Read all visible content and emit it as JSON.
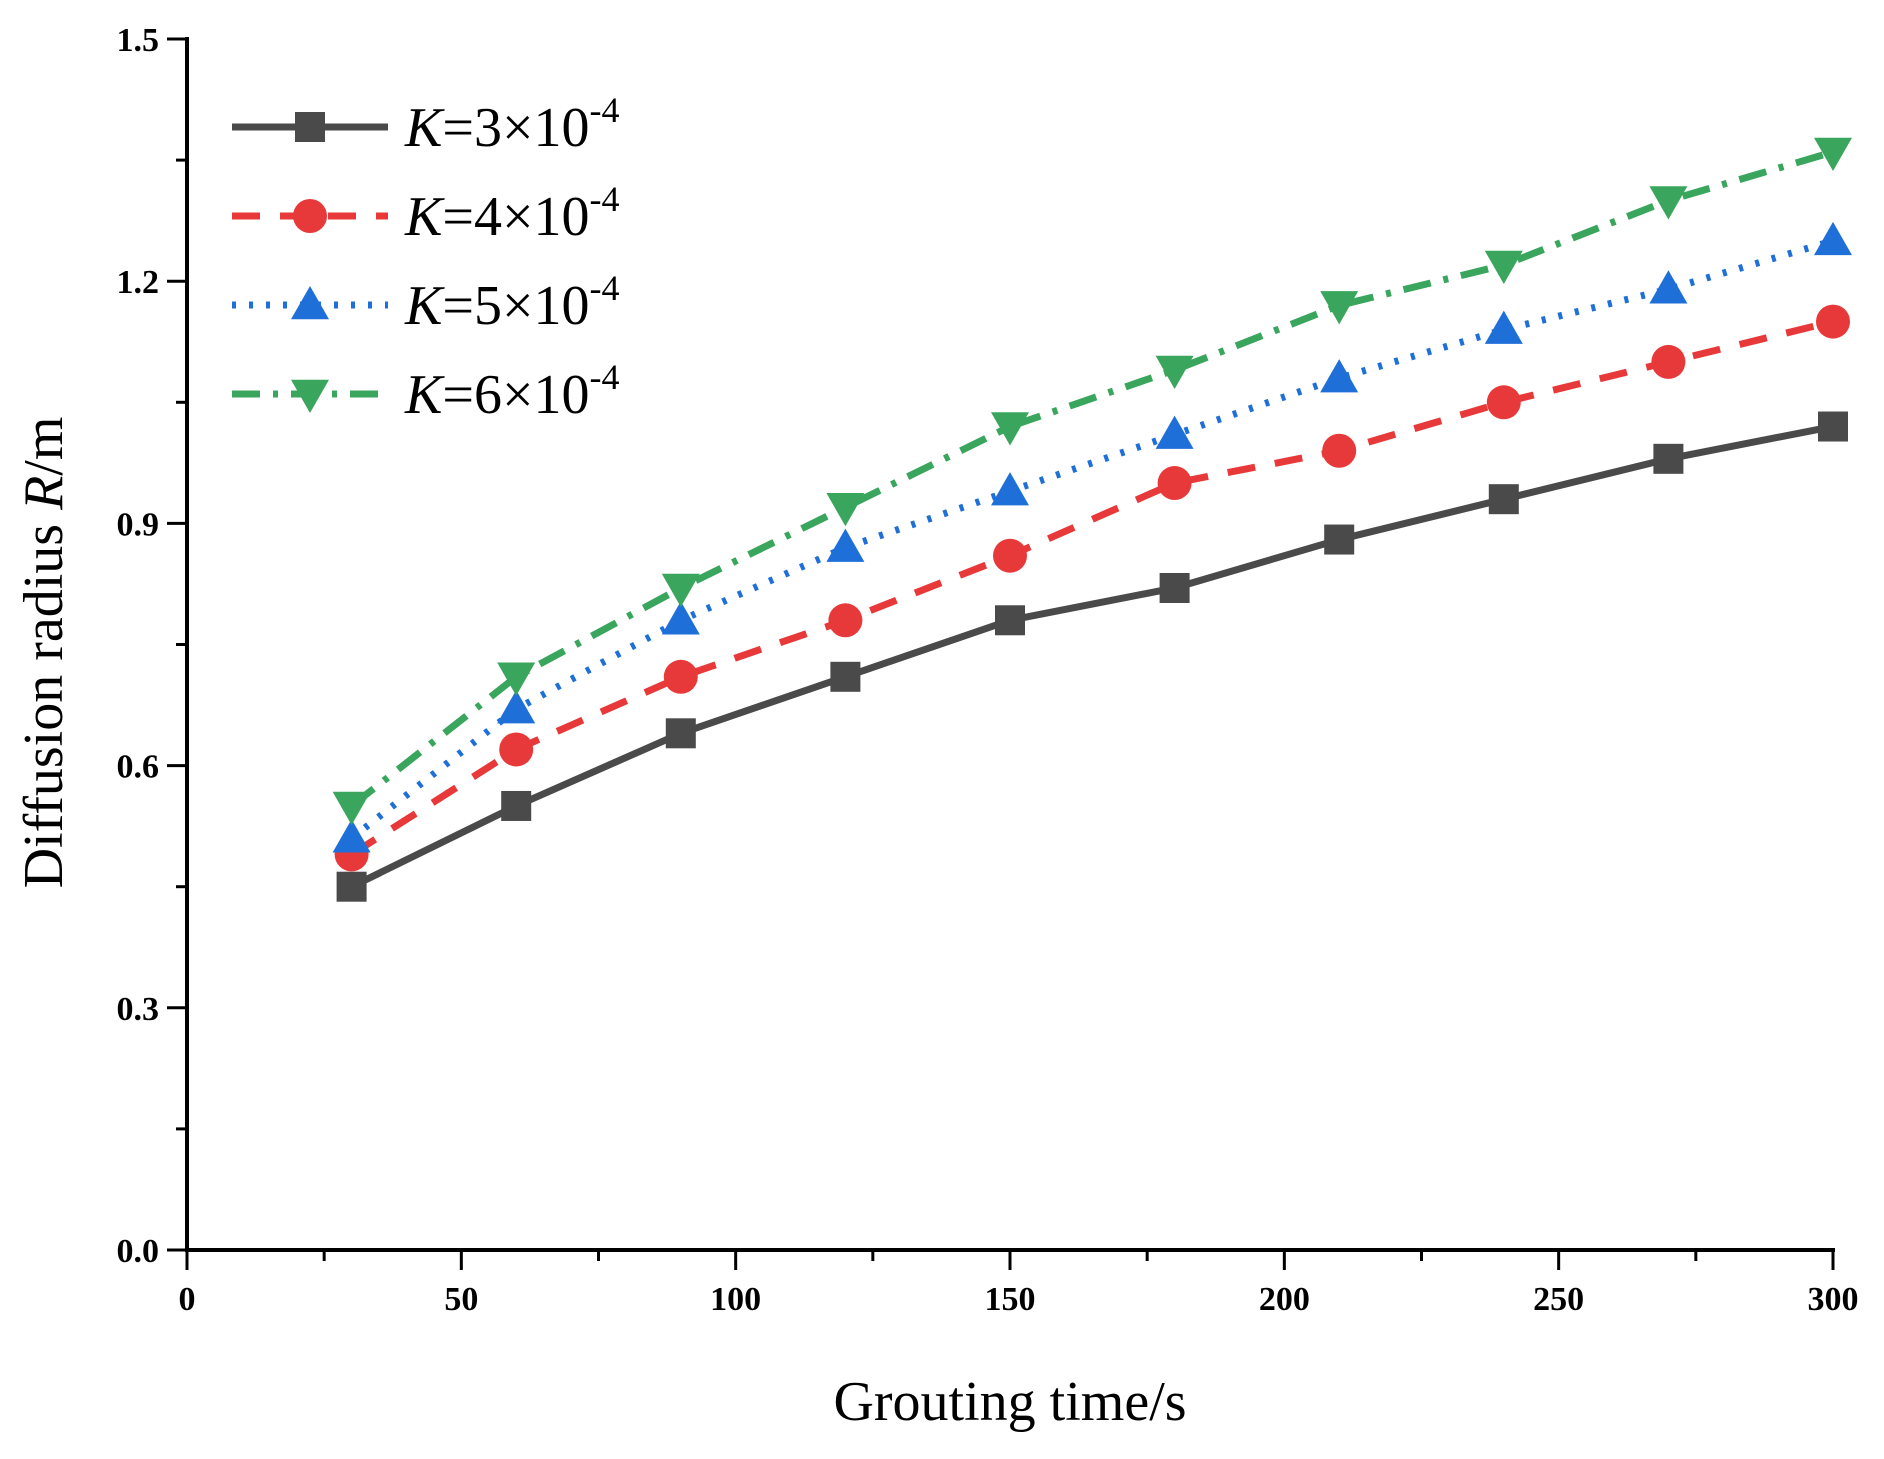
{
  "chart_data": {
    "type": "line",
    "title": "",
    "xlabel": "Grouting time/s",
    "ylabel": {
      "prefix": "Diffusion radius ",
      "var": "R",
      "suffix": "/m"
    },
    "xlim": [
      0,
      300
    ],
    "ylim": [
      0.0,
      1.5
    ],
    "xticks": [
      "0",
      "50",
      "100",
      "150",
      "200",
      "250",
      "300"
    ],
    "xtick_values": [
      0,
      50,
      100,
      150,
      200,
      250,
      300
    ],
    "yticks": [
      "0.0",
      "0.3",
      "0.6",
      "0.9",
      "1.2",
      "1.5"
    ],
    "ytick_values": [
      0.0,
      0.3,
      0.6,
      0.9,
      1.2,
      1.5
    ],
    "grid": false,
    "legend_position": "top-left",
    "x": [
      30,
      60,
      90,
      120,
      150,
      180,
      210,
      240,
      270,
      300
    ],
    "series": [
      {
        "name": "K=3×10-4",
        "k": "K",
        "eq": "=3×10",
        "exp": "-4",
        "color": "#4a4a4a",
        "marker": "square",
        "dash": "solid",
        "values": [
          0.45,
          0.55,
          0.64,
          0.71,
          0.78,
          0.82,
          0.88,
          0.93,
          0.98,
          1.02
        ]
      },
      {
        "name": "K=4×10-4",
        "k": "K",
        "eq": "=4×10",
        "exp": "-4",
        "color": "#e8393a",
        "marker": "circle",
        "dash": "dash",
        "values": [
          0.49,
          0.62,
          0.71,
          0.78,
          0.86,
          0.95,
          0.99,
          1.05,
          1.1,
          1.15
        ]
      },
      {
        "name": "K=5×10-4",
        "k": "K",
        "eq": "=5×10",
        "exp": "-4",
        "color": "#1f6fd8",
        "marker": "triangle-up",
        "dash": "dot",
        "values": [
          0.51,
          0.67,
          0.78,
          0.87,
          0.94,
          1.01,
          1.08,
          1.14,
          1.19,
          1.25
        ]
      },
      {
        "name": "K=6×10-4",
        "k": "K",
        "eq": "=6×10",
        "exp": "-4",
        "color": "#3aa55d",
        "marker": "triangle-down",
        "dash": "dashdot",
        "values": [
          0.55,
          0.71,
          0.82,
          0.92,
          1.02,
          1.09,
          1.17,
          1.22,
          1.3,
          1.36
        ]
      }
    ]
  }
}
